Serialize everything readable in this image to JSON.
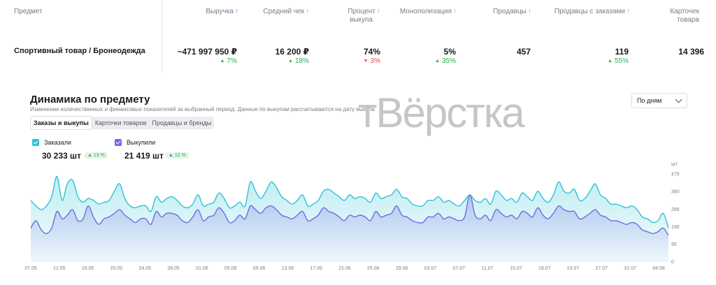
{
  "table": {
    "headers": [
      {
        "label": "Предмет",
        "arrow": false,
        "active": false
      },
      {
        "label": "Выручка",
        "arrow": true,
        "active": true
      },
      {
        "label": "Средний чек",
        "arrow": true,
        "active": false
      },
      {
        "label": "Процент выкупа",
        "arrow": true,
        "active": false
      },
      {
        "label": "Монополизация",
        "arrow": true,
        "active": false
      },
      {
        "label": "Продавцы",
        "arrow": true,
        "active": false
      },
      {
        "label": "Продавцы с заказами",
        "arrow": true,
        "active": false
      },
      {
        "label": "Карточек товара",
        "arrow": false,
        "active": false
      }
    ],
    "header_lines": {
      "percent_line1": "Процент",
      "percent_line2": "выкупа",
      "cards_line1": "Карточек",
      "cards_line2": "товара"
    },
    "row": {
      "subject": "Спортивный товар / Бронеодежда",
      "revenue": "~471 997 950 ₽",
      "revenue_change": "7%",
      "avg_check": "16 200 ₽",
      "avg_check_change": "18%",
      "buyout": "74%",
      "buyout_change": "3%",
      "monopoly": "5%",
      "monopoly_change": "35%",
      "sellers": "457",
      "sellers_with_orders": "119",
      "sellers_with_orders_change": "55%",
      "cards": "14 396"
    }
  },
  "section": {
    "title": "Динамика по предмету",
    "subtitle": "Изменение количественных и финансовых показателей за выбранный период. Данные по выкупам рассчитываются на дату выкупа",
    "watermark": "тВёрстка",
    "tabs": [
      "Заказы и выкупы",
      "Карточки товаров",
      "Продавцы и бренды"
    ],
    "period": "По дням"
  },
  "legend": {
    "ordered_label": "Заказали",
    "ordered_value": "30 233 шт",
    "ordered_change": "13 %",
    "bought_label": "Выкупили",
    "bought_value": "21 419 шт",
    "bought_change": "12 %"
  },
  "colors": {
    "ordered": "#2cc3d6",
    "bought": "#6f6ce0",
    "up": "#2daa57",
    "down": "#e24b4b"
  },
  "chart_data": {
    "type": "area",
    "unit": "шт",
    "y_ticks": [
      0,
      95,
      190,
      285,
      380,
      475
    ],
    "ylim": [
      0,
      500
    ],
    "x_tick_labels": [
      "07.05",
      "12.05",
      "16.05",
      "20.05",
      "24.05",
      "28.05",
      "01.06",
      "05.06",
      "09.06",
      "13.06",
      "17.06",
      "21.06",
      "25.06",
      "29.06",
      "03.07",
      "07.07",
      "11.07",
      "15.07",
      "19.07",
      "23.07",
      "27.07",
      "31.07",
      "04.08"
    ],
    "series": [
      {
        "name": "Заказали",
        "values": [
          330,
          300,
          280,
          300,
          350,
          460,
          330,
          420,
          440,
          350,
          320,
          340,
          330,
          310,
          320,
          330,
          380,
          420,
          340,
          300,
          290,
          300,
          300,
          270,
          350,
          320,
          340,
          350,
          330,
          300,
          290,
          310,
          360,
          300,
          310,
          320,
          370,
          340,
          290,
          300,
          320,
          300,
          430,
          380,
          340,
          380,
          430,
          400,
          350,
          330,
          310,
          330,
          360,
          300,
          310,
          330,
          380,
          390,
          370,
          350,
          330,
          360,
          340,
          350,
          340,
          320,
          370,
          340,
          350,
          360,
          390,
          350,
          340,
          310,
          300,
          300,
          330,
          330,
          350,
          320,
          330,
          310,
          300,
          330,
          360,
          330,
          320,
          340,
          310,
          380,
          360,
          330,
          340,
          320,
          370,
          350,
          330,
          380,
          340,
          320,
          360,
          430,
          380,
          370,
          390,
          330,
          340,
          380,
          420,
          360,
          340,
          310,
          310,
          300,
          290,
          300,
          280,
          240,
          230,
          210,
          220,
          260,
          180
        ],
        "color": "#2cc3d6"
      },
      {
        "name": "Выкупили",
        "values": [
          180,
          220,
          170,
          150,
          180,
          270,
          230,
          250,
          280,
          220,
          230,
          300,
          240,
          200,
          230,
          240,
          260,
          280,
          250,
          230,
          210,
          230,
          230,
          200,
          270,
          240,
          260,
          260,
          250,
          220,
          210,
          240,
          280,
          220,
          240,
          250,
          290,
          260,
          210,
          220,
          250,
          230,
          300,
          280,
          260,
          290,
          300,
          280,
          250,
          240,
          230,
          250,
          270,
          220,
          230,
          250,
          290,
          270,
          260,
          240,
          220,
          250,
          240,
          250,
          240,
          220,
          270,
          240,
          250,
          260,
          300,
          250,
          240,
          220,
          210,
          210,
          240,
          240,
          260,
          230,
          240,
          230,
          220,
          240,
          360,
          250,
          230,
          250,
          220,
          280,
          260,
          240,
          250,
          230,
          270,
          260,
          240,
          290,
          250,
          230,
          260,
          300,
          280,
          270,
          270,
          230,
          240,
          260,
          280,
          250,
          240,
          220,
          220,
          210,
          200,
          210,
          200,
          170,
          160,
          150,
          160,
          180,
          140
        ],
        "color": "#6f6ce0"
      }
    ]
  }
}
